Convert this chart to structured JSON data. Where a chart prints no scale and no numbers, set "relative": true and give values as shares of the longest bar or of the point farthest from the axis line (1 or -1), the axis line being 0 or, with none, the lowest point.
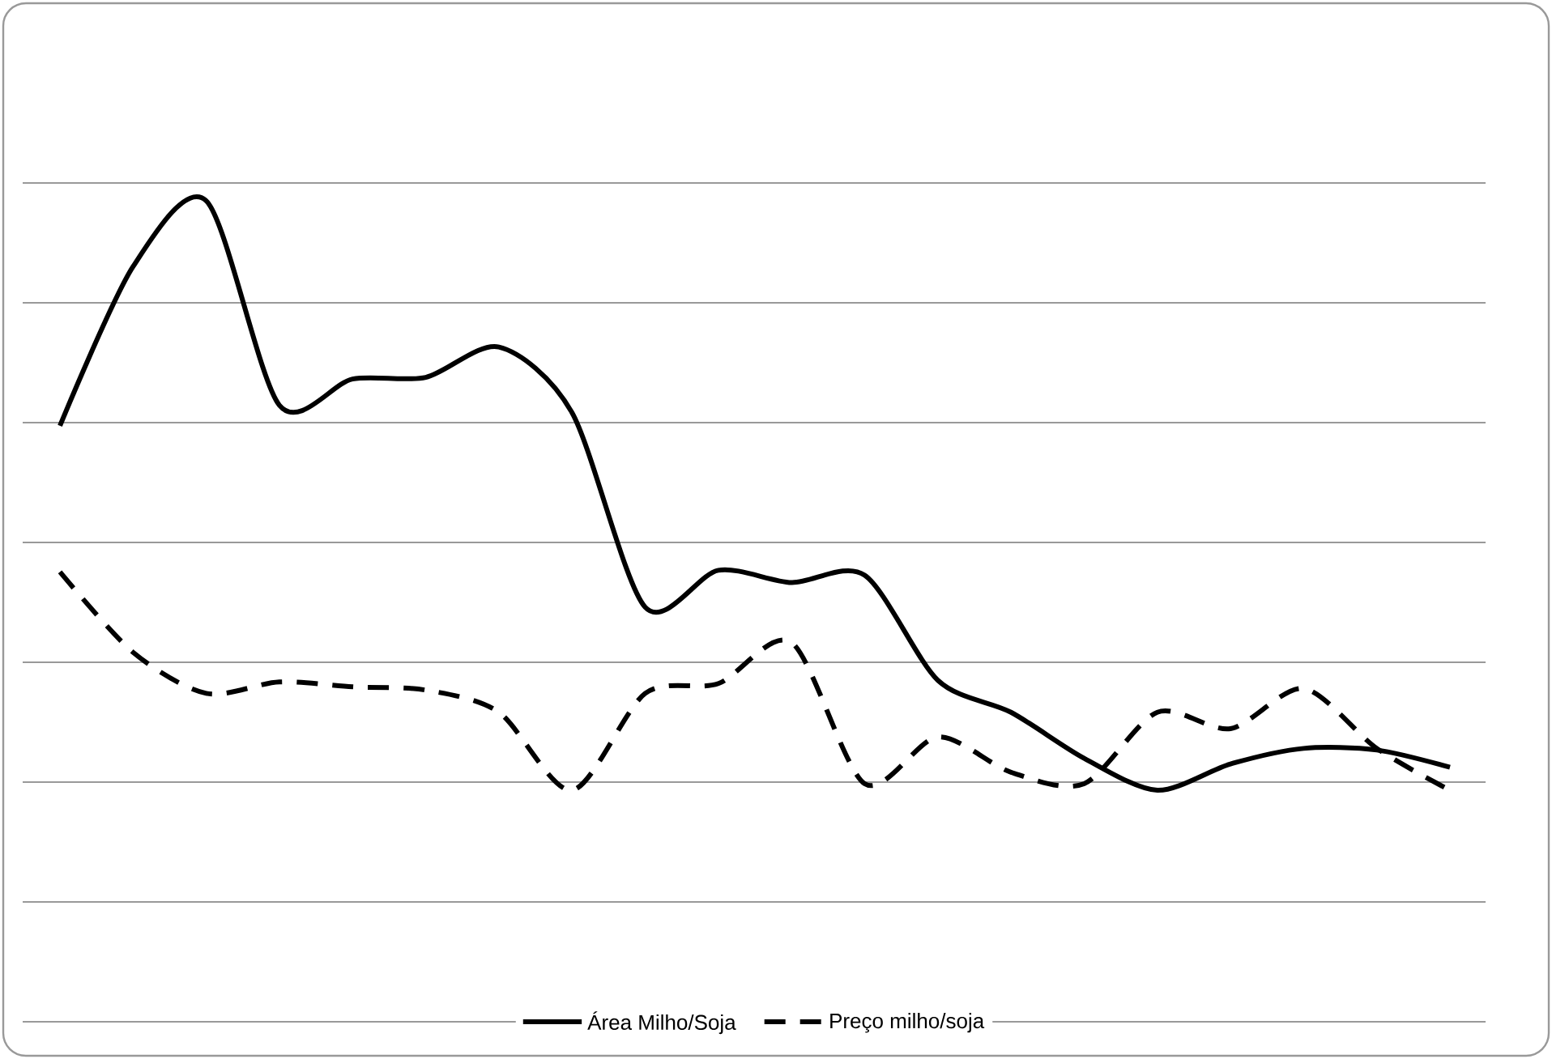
{
  "chart_data": {
    "type": "line",
    "relative": true,
    "grid": "y",
    "legend": "bottom",
    "categories": [
      null,
      null,
      null,
      null,
      null,
      null,
      null,
      null,
      null,
      null,
      null,
      null,
      null,
      null,
      null,
      null,
      null,
      null,
      null,
      null
    ],
    "series": [
      {
        "name": "Área Milho/Soja",
        "color": "#000000",
        "line_style": "solid",
        "values": [
          0.726,
          0.92,
          1.0,
          0.751,
          0.783,
          0.785,
          0.822,
          0.742,
          0.505,
          0.55,
          0.535,
          0.544,
          0.416,
          0.377,
          0.321,
          0.282,
          0.314,
          0.333,
          0.331,
          0.31
        ]
      },
      {
        "name": "Preço milho/soja",
        "color": "#000000",
        "line_style": "dashed",
        "values": [
          0.548,
          0.45,
          0.4,
          0.414,
          0.408,
          0.404,
          0.377,
          0.282,
          0.4,
          0.412,
          0.462,
          0.29,
          0.347,
          0.304,
          0.29,
          0.377,
          0.357,
          0.406,
          0.333,
          0.282
        ]
      }
    ]
  }
}
